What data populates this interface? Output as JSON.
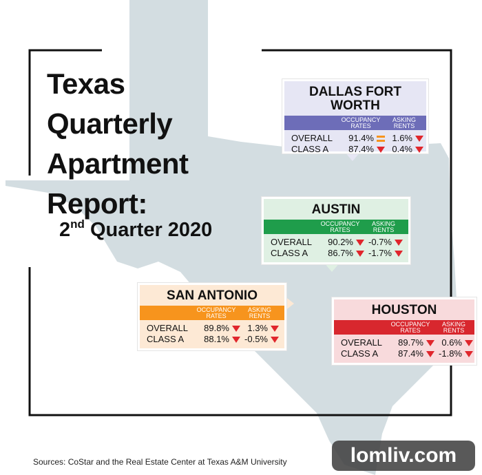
{
  "header": {
    "title_lines": [
      "Texas",
      "Quarterly",
      "Apartment",
      "Report:"
    ],
    "subtitle": {
      "number": "2",
      "suffix": "nd",
      "rest": "Quarter 2020"
    }
  },
  "cards": [
    {
      "name": "DALLAS FORT WORTH",
      "color": "#6d6db8",
      "background": "#e6e6f4",
      "columns": [
        "OCCUPANCY RATES",
        "ASKING RENTS"
      ],
      "rows": [
        {
          "label": "OVERALL",
          "occupancy": "91.4%",
          "occupancy_trend": "flat",
          "rents": "1.6%",
          "rents_trend": "down"
        },
        {
          "label": "CLASS A",
          "occupancy": "87.4%",
          "occupancy_trend": "down",
          "rents": "0.4%",
          "rents_trend": "down"
        }
      ]
    },
    {
      "name": "AUSTIN",
      "color": "#1f9d4b",
      "background": "#dff0e3",
      "columns": [
        "OCCUPANCY RATES",
        "ASKING RENTS"
      ],
      "rows": [
        {
          "label": "OVERALL",
          "occupancy": "90.2%",
          "occupancy_trend": "down",
          "rents": "-0.7%",
          "rents_trend": "down"
        },
        {
          "label": "CLASS A",
          "occupancy": "86.7%",
          "occupancy_trend": "down",
          "rents": "-1.7%",
          "rents_trend": "down"
        }
      ]
    },
    {
      "name": "SAN ANTONIO",
      "color": "#f7941d",
      "background": "#fde9d5",
      "columns": [
        "OCCUPANCY RATES",
        "ASKING RENTS"
      ],
      "rows": [
        {
          "label": "OVERALL",
          "occupancy": "89.8%",
          "occupancy_trend": "down",
          "rents": "1.3%",
          "rents_trend": "down"
        },
        {
          "label": "CLASS A",
          "occupancy": "88.1%",
          "occupancy_trend": "down",
          "rents": "-0.5%",
          "rents_trend": "down"
        }
      ]
    },
    {
      "name": "HOUSTON",
      "color": "#d8272e",
      "background": "#f8dadc",
      "columns": [
        "OCCUPANCY RATES",
        "ASKING RENTS"
      ],
      "rows": [
        {
          "label": "OVERALL",
          "occupancy": "89.7%",
          "occupancy_trend": "down",
          "rents": "0.6%",
          "rents_trend": "down"
        },
        {
          "label": "CLASS A",
          "occupancy": "87.4%",
          "occupancy_trend": "down",
          "rents": "-1.8%",
          "rents_trend": "down"
        }
      ]
    }
  ],
  "source": "Sources: CoStar and the Real Estate Center at Texas A&M University",
  "watermark": "lomliv.com"
}
